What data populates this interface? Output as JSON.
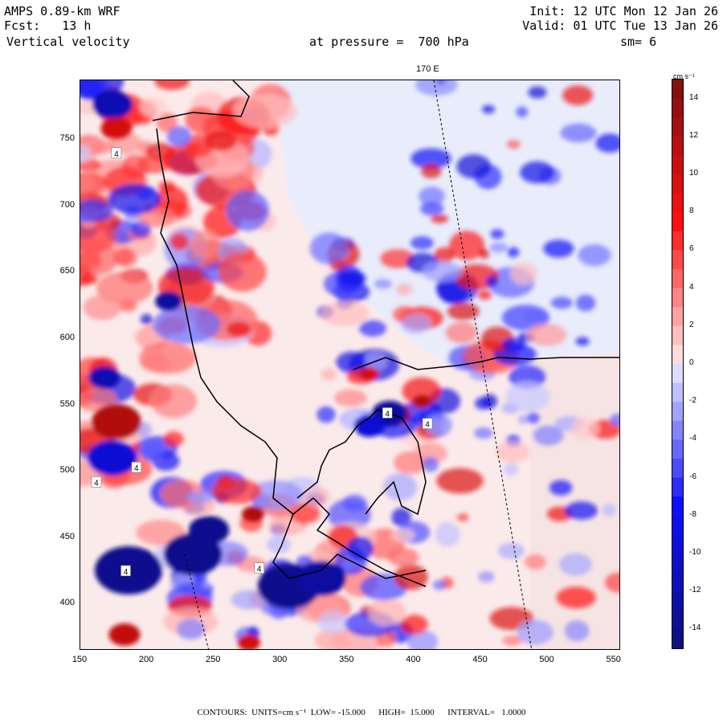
{
  "header": {
    "model": "AMPS 0.89-km WRF",
    "forecast": "Fcst:   13 h",
    "field": "Vertical velocity",
    "level": "at pressure =  700 hPa",
    "init": "Init: 12 UTC Mon 12 Jan 26",
    "valid": "Valid: 01 UTC Tue 13 Jan 26",
    "smoothing": "sm= 6"
  },
  "map": {
    "meridian_label": "170 E",
    "x_ticks": [
      "150",
      "200",
      "250",
      "300",
      "350",
      "400",
      "450",
      "500",
      "550"
    ],
    "y_ticks": [
      "750",
      "700",
      "650",
      "600",
      "550",
      "500",
      "450",
      "400"
    ],
    "x_range": [
      150,
      555
    ],
    "y_range": [
      365,
      795
    ],
    "contour_labels": [
      {
        "text": "4",
        "x": 177,
        "y": 740
      },
      {
        "text": "4",
        "x": 192,
        "y": 503
      },
      {
        "text": "4",
        "x": 162,
        "y": 492
      },
      {
        "text": "4",
        "x": 380,
        "y": 544
      },
      {
        "text": "4",
        "x": 410,
        "y": 536
      },
      {
        "text": "4",
        "x": 184,
        "y": 425
      },
      {
        "text": "4",
        "x": 284,
        "y": 427
      }
    ],
    "positive_color": "#b01010",
    "negative_color": "#10108a"
  },
  "colorbar": {
    "unit": "cm s⁻¹",
    "ticks": [
      "14",
      "12",
      "10",
      "8",
      "6",
      "4",
      "2",
      "0",
      "-2",
      "-4",
      "-6",
      "-8",
      "-10",
      "-12",
      "-14"
    ],
    "low": -15,
    "high": 15
  },
  "footer": {
    "text": "CONTOURS:  UNITS=cm s⁻¹  LOW= -15.000      HIGH=  15.000      INTERVAL=   1.0000"
  }
}
